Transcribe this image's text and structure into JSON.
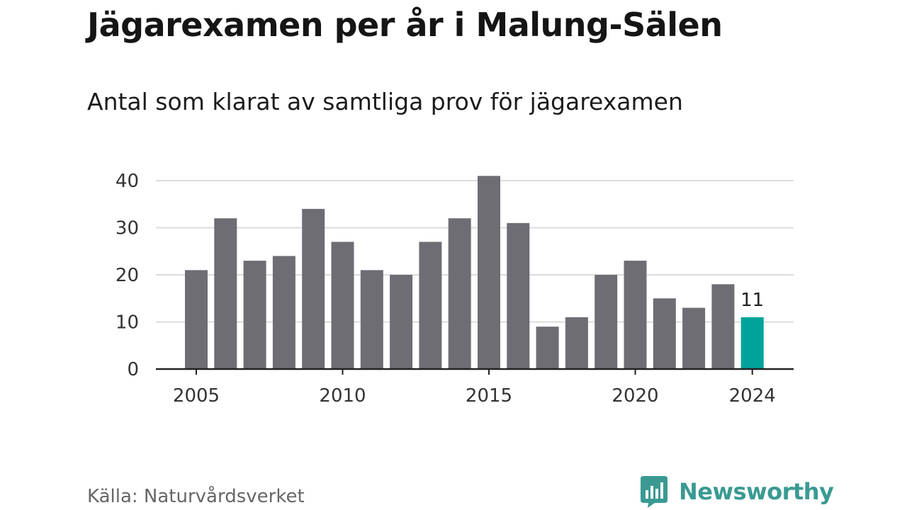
{
  "title": "Jägarexamen per år i Malung-Sälen",
  "subtitle": "Antal som klarat av samtliga prov för jägarexamen",
  "source": "Källa: Naturvårdsverket",
  "brand": {
    "name": "Newsworthy",
    "color": "#3a9a92",
    "icon": "bar-chart-speech-bubble-icon"
  },
  "chart_data": {
    "type": "bar",
    "x": [
      2005,
      2006,
      2007,
      2008,
      2009,
      2010,
      2011,
      2012,
      2013,
      2014,
      2015,
      2016,
      2017,
      2018,
      2019,
      2020,
      2021,
      2022,
      2023,
      2024
    ],
    "values": [
      21,
      32,
      23,
      24,
      34,
      27,
      21,
      20,
      27,
      32,
      41,
      31,
      9,
      11,
      20,
      23,
      15,
      13,
      18,
      11
    ],
    "title": "Jägarexamen per år i Malung-Sälen",
    "subtitle": "Antal som klarat av samtliga prov för jägarexamen",
    "xlabel": "",
    "ylabel": "",
    "ylim": [
      0,
      40
    ],
    "yticks": [
      0,
      10,
      20,
      30,
      40
    ],
    "xticks": [
      2005,
      2010,
      2015,
      2020,
      2024
    ],
    "grid": true,
    "bar_color": "#6e6d74",
    "highlight": {
      "x": 2024,
      "color": "#00a39a",
      "label": "11"
    }
  }
}
